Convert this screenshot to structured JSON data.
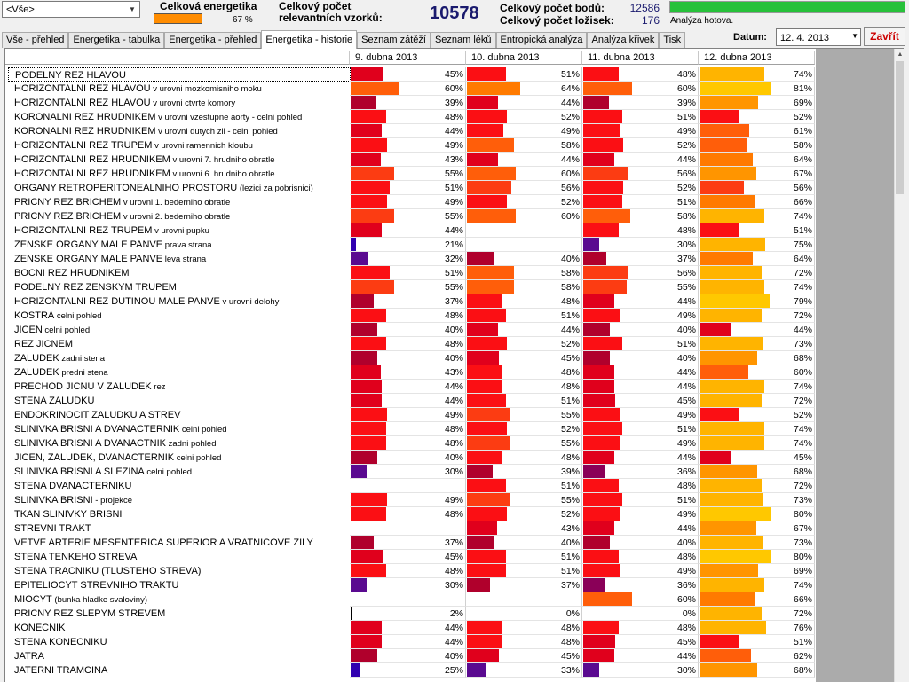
{
  "filter": {
    "value": "<Vše>"
  },
  "energy": {
    "label": "Celková energetika",
    "percent": "67 %",
    "color": "#ff8c00"
  },
  "samples": {
    "label_line1": "Celkový počet",
    "label_line2": "relevantních vzorků:",
    "value": "10578"
  },
  "points": {
    "label": "Celkový počet bodů:",
    "value": "12586"
  },
  "foci": {
    "label": "Celkový počet ložisek:",
    "value": "176"
  },
  "status": {
    "text": "Analýza hotova.",
    "progress": 1.0,
    "color": "#27c13a"
  },
  "tabs": [
    {
      "label": "Vše - přehled"
    },
    {
      "label": "Energetika - tabulka"
    },
    {
      "label": "Energetika - přehled"
    },
    {
      "label": "Energetika - historie",
      "active": true
    },
    {
      "label": "Seznam zátěží"
    },
    {
      "label": "Seznam léků"
    },
    {
      "label": "Entropická analýza"
    },
    {
      "label": "Analýza křivek"
    },
    {
      "label": "Tisk"
    }
  ],
  "date": {
    "label": "Datum:",
    "value": "12. 4. 2013"
  },
  "close_label": "Zavřít",
  "columns": [
    "9. dubna 2013",
    "10. dubna 2013",
    "11. dubna 2013",
    "12. dubna 2013"
  ],
  "rows": [
    {
      "parts": [
        [
          "PODELNY REZ HLAVOU",
          "big"
        ]
      ],
      "v": [
        45,
        51,
        48,
        74
      ]
    },
    {
      "parts": [
        [
          "HORIZONTALNI REZ HLAVOU",
          "big"
        ],
        [
          " v urovni mozkomisniho moku",
          "sm"
        ]
      ],
      "v": [
        60,
        64,
        60,
        81
      ]
    },
    {
      "parts": [
        [
          "HORIZONTALNI REZ HLAVOU",
          "big"
        ],
        [
          " v urovni ctvrte komory",
          "sm"
        ]
      ],
      "v": [
        39,
        44,
        39,
        69
      ]
    },
    {
      "parts": [
        [
          "KORONALNI REZ HRUDNIKEM",
          "big"
        ],
        [
          " v urovni vzestupne aorty - celni pohled",
          "sm"
        ]
      ],
      "v": [
        48,
        52,
        51,
        52
      ]
    },
    {
      "parts": [
        [
          "KORONALNI REZ HRUDNIKEM",
          "big"
        ],
        [
          " v urovni dutych zil - celni pohled",
          "sm"
        ]
      ],
      "v": [
        44,
        49,
        49,
        61
      ]
    },
    {
      "parts": [
        [
          "HORIZONTALNI REZ TRUPEM",
          "big"
        ],
        [
          " v urovni ramennich kloubu",
          "sm"
        ]
      ],
      "v": [
        49,
        58,
        52,
        58
      ]
    },
    {
      "parts": [
        [
          "HORIZONTALNI REZ HRUDNIKEM",
          "big"
        ],
        [
          " v urovni 7. hrudniho obratle",
          "sm"
        ]
      ],
      "v": [
        43,
        44,
        44,
        64
      ]
    },
    {
      "parts": [
        [
          "HORIZONTALNI REZ HRUDNIKEM",
          "big"
        ],
        [
          " v urovni 6. hrudniho obratle",
          "sm"
        ]
      ],
      "v": [
        55,
        60,
        56,
        67
      ]
    },
    {
      "parts": [
        [
          "ORGANY RETROPERITONEALNIHO PROSTORU",
          "big"
        ],
        [
          " (lezici za pobrisnici)",
          "sm"
        ]
      ],
      "v": [
        51,
        56,
        52,
        56
      ]
    },
    {
      "parts": [
        [
          "PRICNY REZ BRICHEM",
          "big"
        ],
        [
          " v urovni 1. bederniho obratle",
          "sm"
        ]
      ],
      "v": [
        49,
        52,
        51,
        66
      ]
    },
    {
      "parts": [
        [
          "PRICNY REZ BRICHEM",
          "big"
        ],
        [
          " v urovni 2. bederniho obratle",
          "sm"
        ]
      ],
      "v": [
        55,
        60,
        58,
        74
      ]
    },
    {
      "parts": [
        [
          "HORIZONTALNI REZ TRUPEM",
          "big"
        ],
        [
          " v urovni pupku",
          "sm"
        ]
      ],
      "v": [
        44,
        null,
        48,
        51
      ]
    },
    {
      "parts": [
        [
          "ZENSKE ORGANY MALE PANVE",
          "big"
        ],
        [
          " prava strana",
          "sm"
        ]
      ],
      "v": [
        21,
        null,
        30,
        75
      ]
    },
    {
      "parts": [
        [
          "ZENSKE ORGANY MALE PANVE",
          "big"
        ],
        [
          " leva strana",
          "sm"
        ]
      ],
      "v": [
        32,
        40,
        37,
        64
      ]
    },
    {
      "parts": [
        [
          "BOCNI REZ HRUDNIKEM",
          "big"
        ]
      ],
      "v": [
        51,
        58,
        56,
        72
      ]
    },
    {
      "parts": [
        [
          "PODELNY REZ ZENSKYM TRUPEM",
          "big"
        ]
      ],
      "v": [
        55,
        58,
        55,
        74
      ]
    },
    {
      "parts": [
        [
          "HORIZONTALNI REZ DUTINOU MALE PANVE",
          "big"
        ],
        [
          " v urovni delohy",
          "sm"
        ]
      ],
      "v": [
        37,
        48,
        44,
        79
      ]
    },
    {
      "parts": [
        [
          "KOSTRA",
          "big"
        ],
        [
          " celni pohled",
          "sm"
        ]
      ],
      "v": [
        48,
        51,
        49,
        72
      ]
    },
    {
      "parts": [
        [
          "JICEN",
          "big"
        ],
        [
          " celni pohled",
          "sm"
        ]
      ],
      "v": [
        40,
        44,
        40,
        44
      ]
    },
    {
      "parts": [
        [
          "REZ JICNEM",
          "big"
        ]
      ],
      "v": [
        48,
        52,
        51,
        73
      ]
    },
    {
      "parts": [
        [
          "ZALUDEK",
          "big"
        ],
        [
          " zadni stena",
          "sm"
        ]
      ],
      "v": [
        40,
        45,
        40,
        68
      ]
    },
    {
      "parts": [
        [
          "ZALUDEK",
          "big"
        ],
        [
          " predni stena",
          "sm"
        ]
      ],
      "v": [
        43,
        48,
        44,
        60
      ]
    },
    {
      "parts": [
        [
          "PRECHOD JICNU V ZALUDEK",
          "big"
        ],
        [
          " rez",
          "sm"
        ]
      ],
      "v": [
        44,
        48,
        44,
        74
      ]
    },
    {
      "parts": [
        [
          "STENA ZALUDKU",
          "big"
        ]
      ],
      "v": [
        44,
        51,
        45,
        72
      ]
    },
    {
      "parts": [
        [
          "ENDOKRINOCIT ZALUDKU A STREV",
          "big"
        ]
      ],
      "v": [
        49,
        55,
        49,
        52
      ]
    },
    {
      "parts": [
        [
          "SLINIVKA BRISNI A DVANACTERNIK",
          "big"
        ],
        [
          " celni pohled",
          "sm"
        ]
      ],
      "v": [
        48,
        52,
        51,
        74
      ]
    },
    {
      "parts": [
        [
          "SLINIVKA BRISNI A DVANACTNIK",
          "big"
        ],
        [
          "  zadni pohled",
          "sm"
        ]
      ],
      "v": [
        48,
        55,
        49,
        74
      ]
    },
    {
      "parts": [
        [
          "JICEN, ZALUDEK, DVANACTERNIK",
          "big"
        ],
        [
          "  celni pohled",
          "sm"
        ]
      ],
      "v": [
        40,
        48,
        44,
        45
      ]
    },
    {
      "parts": [
        [
          "SLINIVKA BRISNI A SLEZINA",
          "big"
        ],
        [
          " celni pohled",
          "sm"
        ]
      ],
      "v": [
        30,
        39,
        36,
        68
      ]
    },
    {
      "parts": [
        [
          "STENA DVANACTERNIKU",
          "big"
        ]
      ],
      "v": [
        null,
        51,
        48,
        72
      ]
    },
    {
      "parts": [
        [
          "SLINIVKA BRISNI",
          "big"
        ],
        [
          " - projekce",
          "sm"
        ]
      ],
      "v": [
        49,
        55,
        51,
        73
      ]
    },
    {
      "parts": [
        [
          "TKAN SLINIVKY BRISNI",
          "big"
        ]
      ],
      "v": [
        48,
        52,
        49,
        80
      ]
    },
    {
      "parts": [
        [
          "STREVNI TRAKT",
          "big"
        ]
      ],
      "v": [
        null,
        43,
        44,
        67
      ]
    },
    {
      "parts": [
        [
          "VETVE ARTERIE MESENTERICA SUPERIOR A VRATNICOVE ZILY",
          "big"
        ]
      ],
      "v": [
        37,
        40,
        40,
        73
      ]
    },
    {
      "parts": [
        [
          "STENA TENKEHO STREVA",
          "big"
        ]
      ],
      "v": [
        45,
        51,
        48,
        80
      ]
    },
    {
      "parts": [
        [
          "STENA TRACNIKU (TLUSTEHO STREVA)",
          "big"
        ]
      ],
      "v": [
        48,
        51,
        49,
        69
      ]
    },
    {
      "parts": [
        [
          "EPITELIOCYT STREVNIHO TRAKTU",
          "big"
        ]
      ],
      "v": [
        30,
        37,
        36,
        74
      ]
    },
    {
      "parts": [
        [
          "MIOCYT",
          "big"
        ],
        [
          " (bunka hladke svaloviny)",
          "sm"
        ]
      ],
      "v": [
        null,
        null,
        60,
        66
      ]
    },
    {
      "parts": [
        [
          "PRICNY REZ SLEPYM STREVEM",
          "big"
        ]
      ],
      "v": [
        2,
        0,
        0,
        72
      ]
    },
    {
      "parts": [
        [
          "KONECNIK",
          "big"
        ]
      ],
      "v": [
        44,
        48,
        48,
        76
      ]
    },
    {
      "parts": [
        [
          "STENA KONECNIKU",
          "big"
        ]
      ],
      "v": [
        44,
        48,
        45,
        51
      ]
    },
    {
      "parts": [
        [
          "JATRA",
          "big"
        ]
      ],
      "v": [
        40,
        45,
        44,
        62
      ]
    },
    {
      "parts": [
        [
          "JATERNI TRAMCINA",
          "big"
        ]
      ],
      "v": [
        25,
        33,
        30,
        68
      ]
    }
  ]
}
